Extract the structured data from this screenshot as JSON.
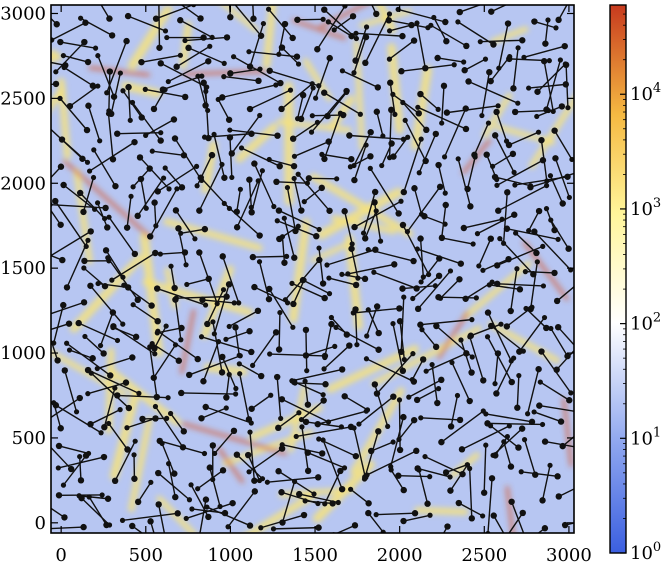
{
  "chart_data": {
    "type": "heatmap",
    "title": "",
    "xlabel": "",
    "ylabel": "",
    "xlim": [
      -60,
      3030
    ],
    "ylim": [
      -60,
      3050
    ],
    "x_ticks": [
      {
        "value": 0,
        "label": "0"
      },
      {
        "value": 500,
        "label": "500"
      },
      {
        "value": 1000,
        "label": "1000"
      },
      {
        "value": 1500,
        "label": "1500"
      },
      {
        "value": 2000,
        "label": "2000"
      },
      {
        "value": 2500,
        "label": "2500"
      },
      {
        "value": 3000,
        "label": "3000"
      }
    ],
    "y_ticks": [
      {
        "value": 0,
        "label": "0"
      },
      {
        "value": 500,
        "label": "500"
      },
      {
        "value": 1000,
        "label": "1000"
      },
      {
        "value": 1500,
        "label": "1500"
      },
      {
        "value": 2000,
        "label": "2000"
      },
      {
        "value": 2500,
        "label": "2500"
      },
      {
        "value": 3000,
        "label": "3000"
      }
    ],
    "colorbar": {
      "scale": "log",
      "range": [
        1,
        60000
      ],
      "colors": [
        "#3b5fe0",
        "#8ea6ef",
        "#ffffff",
        "#fff59a",
        "#f5b942",
        "#c73a1e"
      ],
      "ticks": [
        {
          "value": 1,
          "base": "10",
          "exp": "0"
        },
        {
          "value": 10,
          "base": "10",
          "exp": "1"
        },
        {
          "value": 100,
          "base": "10",
          "exp": "2"
        },
        {
          "value": 1000,
          "base": "10",
          "exp": "3"
        },
        {
          "value": 10000,
          "base": "10",
          "exp": "4"
        }
      ]
    },
    "field": {
      "background_color": "#b7c6f2",
      "ridge_color": "#f7e37a",
      "hotspot_color": "#d9582a",
      "stick_color": "#111111",
      "bead_color": "#111111"
    },
    "grid": false,
    "legend": "none"
  }
}
